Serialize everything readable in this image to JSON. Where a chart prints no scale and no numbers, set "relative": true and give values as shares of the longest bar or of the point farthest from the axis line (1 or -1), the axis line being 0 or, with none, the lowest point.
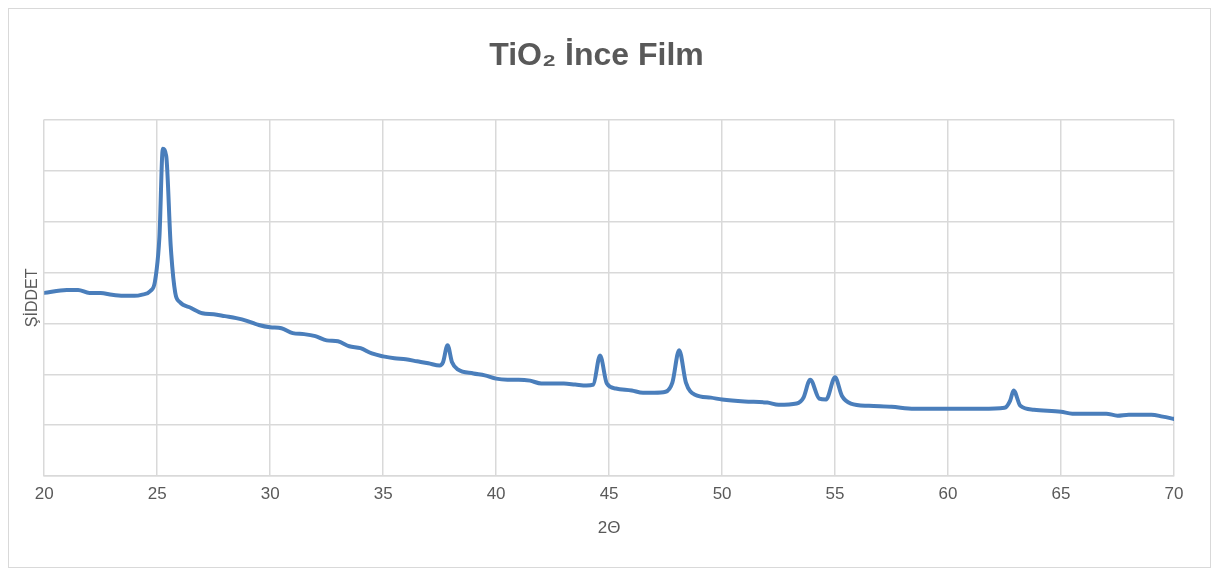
{
  "chart_data": {
    "type": "line",
    "title": "TiO₂ İnce Film",
    "xlabel": "2Θ",
    "ylabel": "ŞİDDET",
    "relative": true,
    "grid": true,
    "legend": false,
    "marker": "none",
    "line_style": "solid",
    "xlim": [
      20,
      70
    ],
    "xticks": [
      20,
      25,
      30,
      35,
      40,
      45,
      50,
      55,
      60,
      65,
      70
    ],
    "series": [
      {
        "color": "#4a7ebb",
        "x": [
          20,
          21,
          21.5,
          22,
          22.5,
          23,
          23.5,
          24,
          24.3,
          24.7,
          24.9,
          25.1,
          25.25,
          25.4,
          25.6,
          25.8,
          26,
          26.5,
          27,
          27.5,
          28,
          28.5,
          29,
          29.5,
          30,
          30.5,
          31,
          31.5,
          32,
          32.5,
          33,
          33.5,
          34,
          34.5,
          35,
          35.5,
          36,
          36.5,
          37,
          37.5,
          37.65,
          37.85,
          38.05,
          38.3,
          39,
          39.5,
          40,
          40.5,
          41,
          41.5,
          42,
          42.5,
          43,
          43.5,
          44,
          44.3,
          44.6,
          44.9,
          45.3,
          46,
          46.5,
          47,
          47.5,
          47.8,
          48.1,
          48.4,
          48.8,
          49.5,
          50,
          51,
          52,
          52.5,
          53.3,
          53.6,
          53.9,
          54.3,
          54.6,
          55,
          55.3,
          55.7,
          56.5,
          57.5,
          58.5,
          59.5,
          60.5,
          61.5,
          62.5,
          62.75,
          62.9,
          63.2,
          63.8,
          65,
          65.5,
          66.5,
          67,
          67.5,
          68,
          69,
          69.5,
          70
        ],
        "values": [
          0.56,
          0.569,
          0.569,
          0.56,
          0.56,
          0.554,
          0.551,
          0.551,
          0.554,
          0.566,
          0.594,
          0.732,
          1,
          0.978,
          0.702,
          0.56,
          0.532,
          0.514,
          0.498,
          0.495,
          0.489,
          0.483,
          0.474,
          0.462,
          0.455,
          0.452,
          0.437,
          0.434,
          0.428,
          0.415,
          0.412,
          0.397,
          0.391,
          0.375,
          0.366,
          0.36,
          0.357,
          0.351,
          0.345,
          0.338,
          0.348,
          0.4,
          0.348,
          0.326,
          0.314,
          0.308,
          0.298,
          0.295,
          0.295,
          0.292,
          0.283,
          0.283,
          0.283,
          0.28,
          0.277,
          0.28,
          0.369,
          0.283,
          0.268,
          0.262,
          0.255,
          0.255,
          0.258,
          0.286,
          0.385,
          0.286,
          0.249,
          0.24,
          0.234,
          0.228,
          0.225,
          0.218,
          0.222,
          0.24,
          0.295,
          0.237,
          0.234,
          0.302,
          0.246,
          0.222,
          0.215,
          0.212,
          0.206,
          0.206,
          0.206,
          0.206,
          0.209,
          0.231,
          0.262,
          0.215,
          0.203,
          0.197,
          0.191,
          0.191,
          0.191,
          0.185,
          0.188,
          0.188,
          0.182,
          0.175
        ]
      }
    ]
  }
}
